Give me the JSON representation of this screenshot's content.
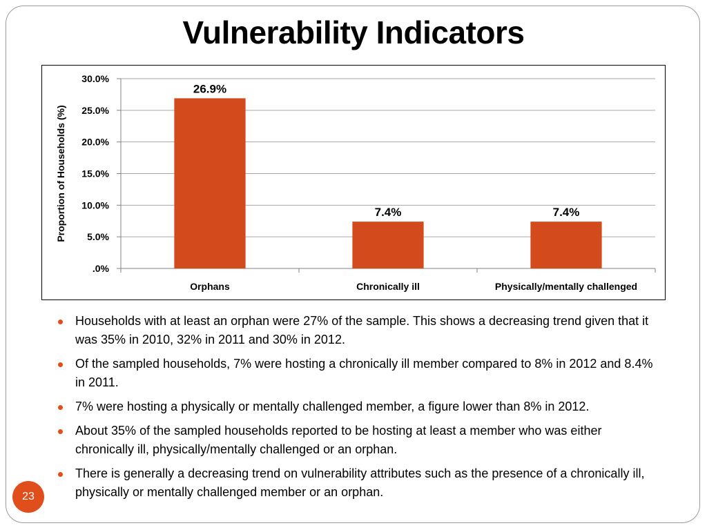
{
  "slide": {
    "title": "Vulnerability Indicators",
    "page_number": "23",
    "accent_color": "#E04E1B"
  },
  "chart_data": {
    "type": "bar",
    "title": "",
    "xlabel": "",
    "ylabel": "Proportion of Households (%)",
    "ylim": [
      0,
      30
    ],
    "yticks": [
      0,
      5,
      10,
      15,
      20,
      25,
      30
    ],
    "ytick_labels": [
      ".0%",
      "5.0%",
      "10.0%",
      "15.0%",
      "20.0%",
      "25.0%",
      "30.0%"
    ],
    "categories": [
      "Orphans",
      "Chronically ill",
      "Physically/mentally challenged"
    ],
    "values": [
      26.9,
      7.4,
      7.4
    ],
    "data_labels": [
      "26.9%",
      "7.4%",
      "7.4%"
    ],
    "bar_color": "#D34A1C",
    "grid": true,
    "legend": "none"
  },
  "bullets": [
    "Households with at least an orphan were 27% of the sample. This shows a decreasing trend given  that it was 35% in 2010, 32%  in 2011 and 30% in 2012.",
    "Of the sampled households, 7% were hosting a chronically ill member compared to 8% in 2012 and 8.4% in 2011.",
    "7% were hosting  a physically or mentally challenged  member, a figure lower than 8% in 2012.",
    "About 35%  of the sampled households reported to be hosting  at least a member who was either chronically ill, physically/mentally challenged or an orphan.",
    "There is generally a decreasing trend on vulnerability attributes such as the presence of a chronically ill, physically or mentally challenged member or an orphan."
  ]
}
